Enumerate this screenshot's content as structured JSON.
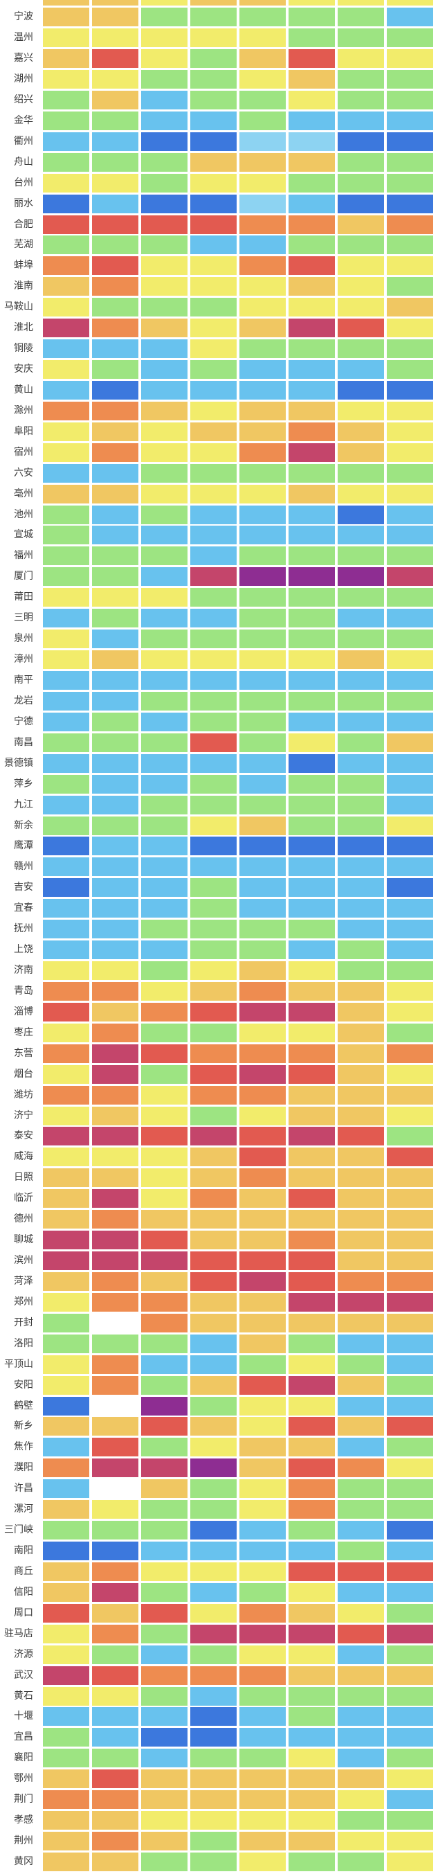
{
  "chart_data": {
    "type": "heatmap",
    "title": "",
    "columns": 8,
    "legend_position": "none",
    "grid_gap_color": "#ffffff",
    "label_text_color": "#3c3c3c",
    "palette": {
      "D": {
        "name": "dark-blue",
        "hex": "#3c78dd"
      },
      "B": {
        "name": "sky-blue",
        "hex": "#68c2ee"
      },
      "L": {
        "name": "pale-blue",
        "hex": "#8dd3f2"
      },
      "G": {
        "name": "green",
        "hex": "#9de482"
      },
      "Y": {
        "name": "yellow",
        "hex": "#f2ec6b"
      },
      "A": {
        "name": "amber",
        "hex": "#f0c762"
      },
      "O": {
        "name": "orange",
        "hex": "#ee8c50"
      },
      "R": {
        "name": "red",
        "hex": "#e25a50"
      },
      "M": {
        "name": "crimson",
        "hex": "#c4456b"
      },
      "P": {
        "name": "purple",
        "hex": "#8e2d92"
      },
      "W": {
        "name": "white",
        "hex": "#ffffff"
      }
    },
    "rows": [
      {
        "label": "",
        "cells": "AAYAAYYY",
        "partial": "top"
      },
      {
        "label": "宁波",
        "cells": "AAGGGGGB"
      },
      {
        "label": "温州",
        "cells": "YYYYYGGG"
      },
      {
        "label": "嘉兴",
        "cells": "ARYGARYY"
      },
      {
        "label": "湖州",
        "cells": "YYGGYAGG"
      },
      {
        "label": "绍兴",
        "cells": "GABGGYGG"
      },
      {
        "label": "金华",
        "cells": "GGBBGBBB"
      },
      {
        "label": "衢州",
        "cells": "BBDDLLDD"
      },
      {
        "label": "舟山",
        "cells": "GGGAAAGG"
      },
      {
        "label": "台州",
        "cells": "YYGYYGGG"
      },
      {
        "label": "丽水",
        "cells": "DBDDLBDD"
      },
      {
        "label": "合肥",
        "cells": "RRRROOAO"
      },
      {
        "label": "芜湖",
        "cells": "GGGBBGGG"
      },
      {
        "label": "蚌埠",
        "cells": "ORYYORYY"
      },
      {
        "label": "淮南",
        "cells": "AOYYYAYG"
      },
      {
        "label": "马鞍山",
        "cells": "YGGGYYYA"
      },
      {
        "label": "淮北",
        "cells": "MOAYAMRY"
      },
      {
        "label": "铜陵",
        "cells": "BBBYGGGG"
      },
      {
        "label": "安庆",
        "cells": "YGBGBBBG"
      },
      {
        "label": "黄山",
        "cells": "BDBBBBDD"
      },
      {
        "label": "滁州",
        "cells": "OOAYAAYY"
      },
      {
        "label": "阜阳",
        "cells": "YAYAAOAY"
      },
      {
        "label": "宿州",
        "cells": "YOYYOMAY"
      },
      {
        "label": "六安",
        "cells": "BBGGGGGG"
      },
      {
        "label": "亳州",
        "cells": "AAYYYAYY"
      },
      {
        "label": "池州",
        "cells": "GBGBBBDB"
      },
      {
        "label": "宣城",
        "cells": "GBBBBBBB"
      },
      {
        "label": "福州",
        "cells": "GGGBGGGG"
      },
      {
        "label": "厦门",
        "cells": "GGBMPPPM"
      },
      {
        "label": "莆田",
        "cells": "YYYGGGGG"
      },
      {
        "label": "三明",
        "cells": "BGBBGGBB"
      },
      {
        "label": "泉州",
        "cells": "YBGGGGGG"
      },
      {
        "label": "漳州",
        "cells": "YAYYYYAY"
      },
      {
        "label": "南平",
        "cells": "BBBBBBBB"
      },
      {
        "label": "龙岩",
        "cells": "BBGGGGGG"
      },
      {
        "label": "宁德",
        "cells": "BGBGGBBB"
      },
      {
        "label": "南昌",
        "cells": "GGGRGYGA"
      },
      {
        "label": "景德镇",
        "cells": "BBBBBDBB"
      },
      {
        "label": "萍乡",
        "cells": "GBBGBGGB"
      },
      {
        "label": "九江",
        "cells": "BBGGGGGB"
      },
      {
        "label": "新余",
        "cells": "GGGYAGGY"
      },
      {
        "label": "鹰潭",
        "cells": "DBBDDDDD"
      },
      {
        "label": "赣州",
        "cells": "BBBBBBBB"
      },
      {
        "label": "吉安",
        "cells": "DBBGBBBD"
      },
      {
        "label": "宜春",
        "cells": "BBBGBBBB"
      },
      {
        "label": "抚州",
        "cells": "BBGGGGBB"
      },
      {
        "label": "上饶",
        "cells": "BBBGGBGB"
      },
      {
        "label": "济南",
        "cells": "YYGYAYGG"
      },
      {
        "label": "青岛",
        "cells": "OOYAOAAY"
      },
      {
        "label": "淄博",
        "cells": "RAORMMAY"
      },
      {
        "label": "枣庄",
        "cells": "YOGGYYAG"
      },
      {
        "label": "东营",
        "cells": "OMROOOAO"
      },
      {
        "label": "烟台",
        "cells": "YMGRMRAY"
      },
      {
        "label": "潍坊",
        "cells": "OOYOOAAA"
      },
      {
        "label": "济宁",
        "cells": "YAYGYAAY"
      },
      {
        "label": "泰安",
        "cells": "MMRMRMRG"
      },
      {
        "label": "威海",
        "cells": "YYYARAAR"
      },
      {
        "label": "日照",
        "cells": "AAYAOAAA"
      },
      {
        "label": "临沂",
        "cells": "AMYOARAA"
      },
      {
        "label": "德州",
        "cells": "AOAAAAAA"
      },
      {
        "label": "聊城",
        "cells": "MMRAAOAA"
      },
      {
        "label": "滨州",
        "cells": "MMMRRRAA"
      },
      {
        "label": "菏泽",
        "cells": "AOARMROO"
      },
      {
        "label": "郑州",
        "cells": "YOOAAMMM"
      },
      {
        "label": "开封",
        "cells": "GWOAAAAA"
      },
      {
        "label": "洛阳",
        "cells": "GGGBAGBB"
      },
      {
        "label": "平顶山",
        "cells": "YOBBGYGB"
      },
      {
        "label": "安阳",
        "cells": "YOGARMAG"
      },
      {
        "label": "鹤壁",
        "cells": "DWPGYYBB"
      },
      {
        "label": "新乡",
        "cells": "AARAYRAR"
      },
      {
        "label": "焦作",
        "cells": "BRGYAABG"
      },
      {
        "label": "濮阳",
        "cells": "OMMPAROY"
      },
      {
        "label": "许昌",
        "cells": "BWAGYOGG"
      },
      {
        "label": "漯河",
        "cells": "AYGGYOGG"
      },
      {
        "label": "三门峡",
        "cells": "GGGDBGBD"
      },
      {
        "label": "南阳",
        "cells": "DDBBBBGB"
      },
      {
        "label": "商丘",
        "cells": "AOYYYRRR"
      },
      {
        "label": "信阳",
        "cells": "AMGBGYBB"
      },
      {
        "label": "周口",
        "cells": "RARYOAYG"
      },
      {
        "label": "驻马店",
        "cells": "YOGMMMRM"
      },
      {
        "label": "济源",
        "cells": "YGBGYYBG"
      },
      {
        "label": "武汉",
        "cells": "MROOOAAA"
      },
      {
        "label": "黄石",
        "cells": "YYGBGGGG"
      },
      {
        "label": "十堰",
        "cells": "BBBDBGBB"
      },
      {
        "label": "宜昌",
        "cells": "GBDDBBBB"
      },
      {
        "label": "襄阳",
        "cells": "GGBGGYBG"
      },
      {
        "label": "鄂州",
        "cells": "ARAAAAAY"
      },
      {
        "label": "荆门",
        "cells": "OOAAAAYB"
      },
      {
        "label": "孝感",
        "cells": "AAYYYYGG"
      },
      {
        "label": "荆州",
        "cells": "AOAGAAYY"
      },
      {
        "label": "黄冈",
        "cells": "AAGGYGGY"
      }
    ]
  }
}
